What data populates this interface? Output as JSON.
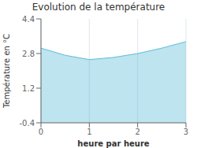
{
  "chart_data": {
    "type": "area",
    "title": "Evolution de la température",
    "xlabel": "heure par heure",
    "ylabel": "Température en °C",
    "x": [
      0,
      0.5,
      1.0,
      1.5,
      2.0,
      2.5,
      3.0
    ],
    "values": [
      3.05,
      2.72,
      2.52,
      2.62,
      2.8,
      3.05,
      3.35
    ],
    "xlim": [
      0,
      3
    ],
    "ylim": [
      -0.4,
      4.4
    ],
    "xticks": [
      0,
      1,
      2,
      3
    ],
    "yticks": [
      -0.4,
      1.2,
      2.8,
      4.4
    ],
    "color": "#5bbcd8",
    "grid": "x"
  }
}
